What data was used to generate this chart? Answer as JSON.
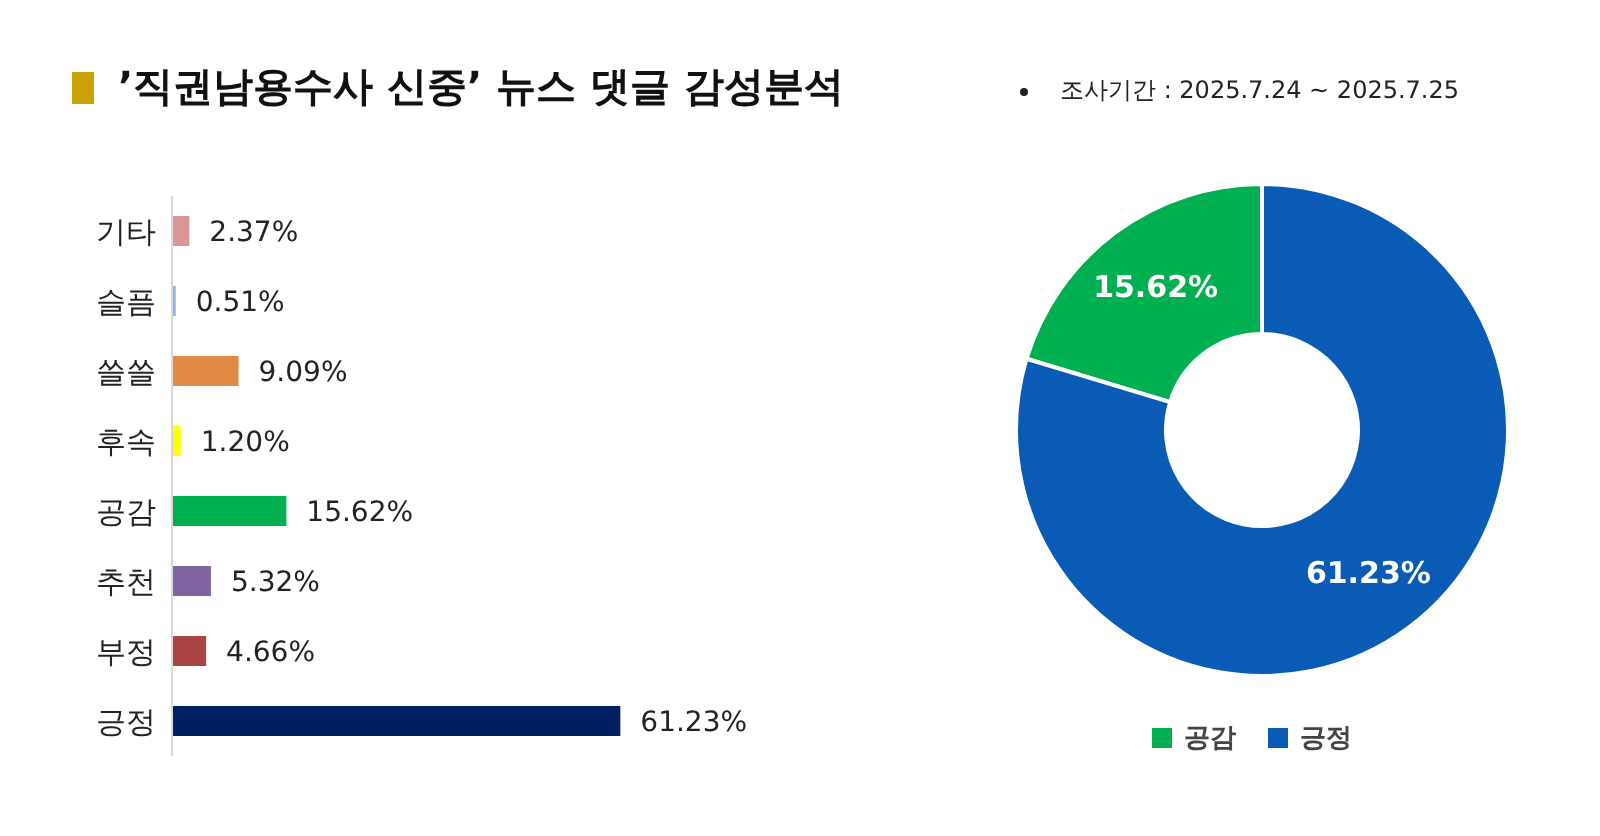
{
  "chart_data": [
    {
      "type": "bar",
      "orientation": "horizontal",
      "title": "’직권남용수사 신중’ 뉴스 댓글 감성분석",
      "categories": [
        "기타",
        "슬픔",
        "쓸쓸",
        "후속",
        "공감",
        "추천",
        "부정",
        "긍정"
      ],
      "values": [
        2.37,
        0.51,
        9.09,
        1.2,
        15.62,
        5.32,
        4.66,
        61.23
      ],
      "colors": [
        "#d99694",
        "#8eb4e3",
        "#e08a45",
        "#ffff00",
        "#00b050",
        "#8064a2",
        "#a94442",
        "#002060"
      ],
      "value_labels": [
        "2.37%",
        "0.51%",
        "9.09%",
        "1.20%",
        "15.62%",
        "5.32%",
        "4.66%",
        "61.23%"
      ]
    },
    {
      "type": "donut",
      "subtitle": "조사기간 : 2025.7.24 ~ 2025.7.25",
      "categories": [
        "공감",
        "긍정"
      ],
      "values": [
        15.62,
        61.23
      ],
      "colors": [
        "#00b050",
        "#0a5bb5"
      ],
      "value_labels": [
        "15.62%",
        "61.23%"
      ],
      "legend": "bottom"
    }
  ]
}
